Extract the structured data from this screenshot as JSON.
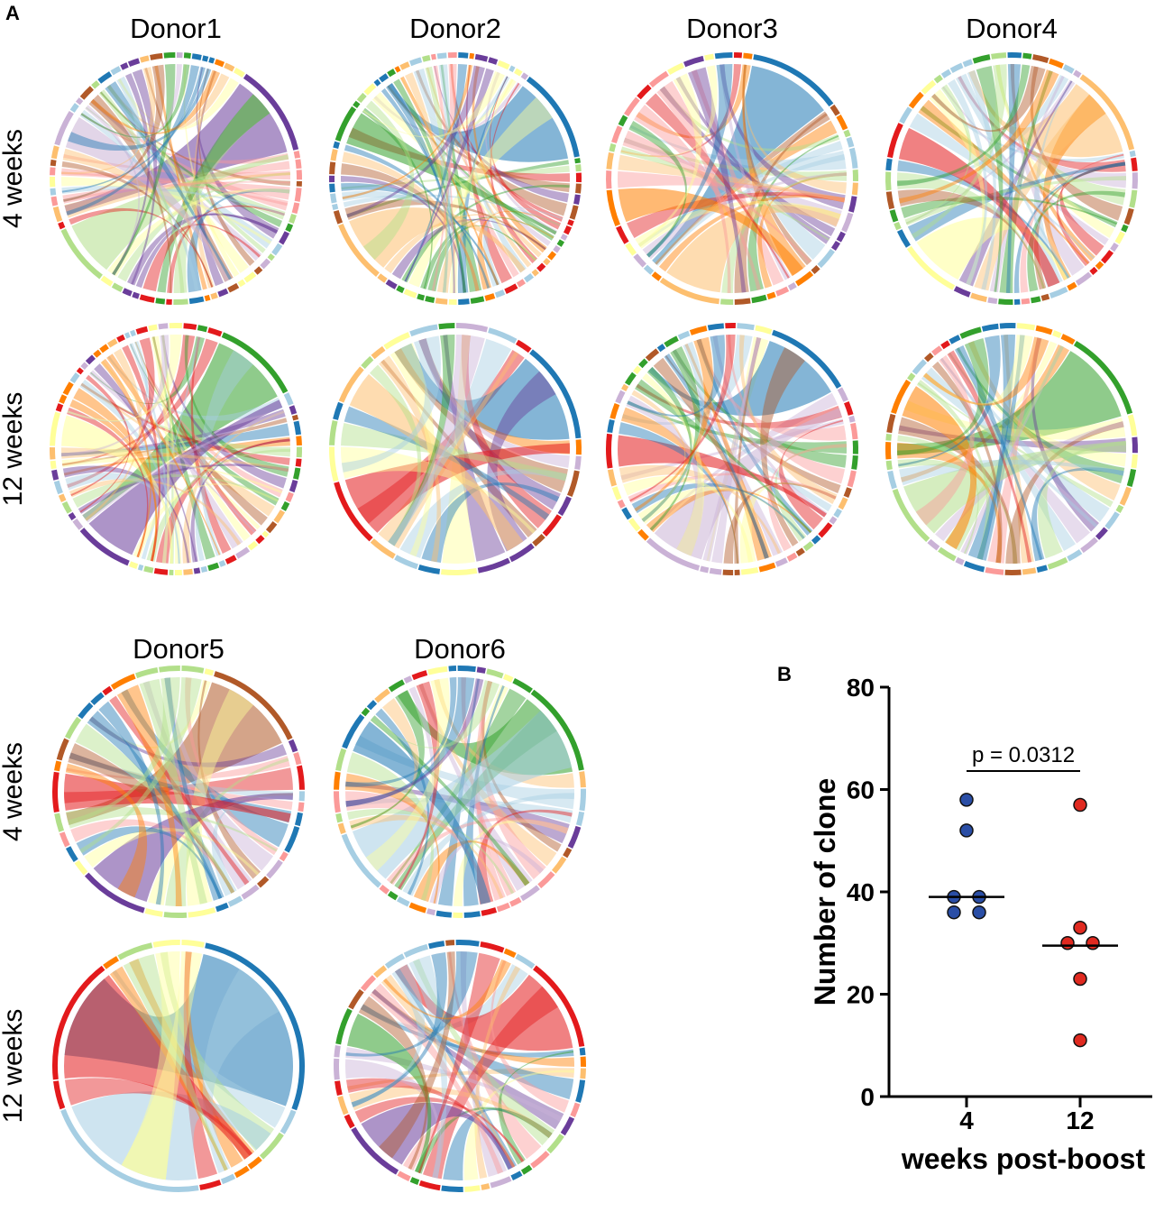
{
  "panel_labels": {
    "a": "A",
    "b": "B"
  },
  "colors": {
    "palette": [
      "#1f78b4",
      "#a6cee3",
      "#33a02c",
      "#b2df8a",
      "#e31a1c",
      "#fb9a99",
      "#ff7f00",
      "#fdbf6f",
      "#6a3d9a",
      "#cab2d6",
      "#b15928",
      "#ffff99"
    ],
    "week4_dot": "#2a4ea6",
    "week12_dot": "#e02a20"
  },
  "rows": {
    "top_4": "4 weeks",
    "top_12": "12 weeks",
    "bottom_4": "4 weeks",
    "bottom_12": "12 weeks"
  },
  "donors": [
    {
      "name": "Donor1",
      "plots": [
        {
          "week": "4 weeks",
          "n_segments": 58,
          "dominant_colors": [
            8,
            3,
            9
          ]
        },
        {
          "week": "12 weeks",
          "n_segments": 60,
          "dominant_colors": [
            2,
            8,
            11
          ]
        }
      ]
    },
    {
      "name": "Donor2",
      "plots": [
        {
          "week": "4 weeks",
          "n_segments": 62,
          "dominant_colors": [
            0,
            7,
            2
          ]
        },
        {
          "week": "12 weeks",
          "n_segments": 26,
          "dominant_colors": [
            0,
            4,
            7
          ]
        }
      ]
    },
    {
      "name": "Donor3",
      "plots": [
        {
          "week": "4 weeks",
          "n_segments": 42,
          "dominant_colors": [
            0,
            7,
            6
          ]
        },
        {
          "week": "12 weeks",
          "n_segments": 48,
          "dominant_colors": [
            0,
            9,
            4
          ]
        }
      ]
    },
    {
      "name": "Donor4",
      "plots": [
        {
          "week": "4 weeks",
          "n_segments": 46,
          "dominant_colors": [
            7,
            11,
            4
          ]
        },
        {
          "week": "12 weeks",
          "n_segments": 40,
          "dominant_colors": [
            2,
            3,
            6
          ]
        }
      ]
    },
    {
      "name": "Donor5",
      "plots": [
        {
          "week": "4 weeks",
          "n_segments": 34,
          "dominant_colors": [
            10,
            8,
            4
          ]
        },
        {
          "week": "12 weeks",
          "n_segments": 14,
          "dominant_colors": [
            0,
            1,
            4
          ]
        }
      ]
    },
    {
      "name": "Donor6",
      "plots": [
        {
          "week": "4 weeks",
          "n_segments": 40,
          "dominant_colors": [
            2,
            1,
            0
          ]
        },
        {
          "week": "12 weeks",
          "n_segments": 36,
          "dominant_colors": [
            4,
            8,
            2
          ]
        }
      ]
    }
  ],
  "chart_data": {
    "type": "scatter",
    "title": "",
    "xlabel": "weeks post-boost",
    "ylabel": "Number of clone",
    "categories": [
      "4",
      "12"
    ],
    "ylim": [
      0,
      80
    ],
    "yticks": [
      0,
      20,
      40,
      60,
      80
    ],
    "series": [
      {
        "name": "4",
        "values": [
          58,
          52,
          39,
          39,
          36,
          36
        ],
        "median": 39
      },
      {
        "name": "12",
        "values": [
          57,
          33,
          30,
          30,
          23,
          11
        ],
        "median": 29.5
      }
    ],
    "annotation": "p = 0.0312"
  }
}
